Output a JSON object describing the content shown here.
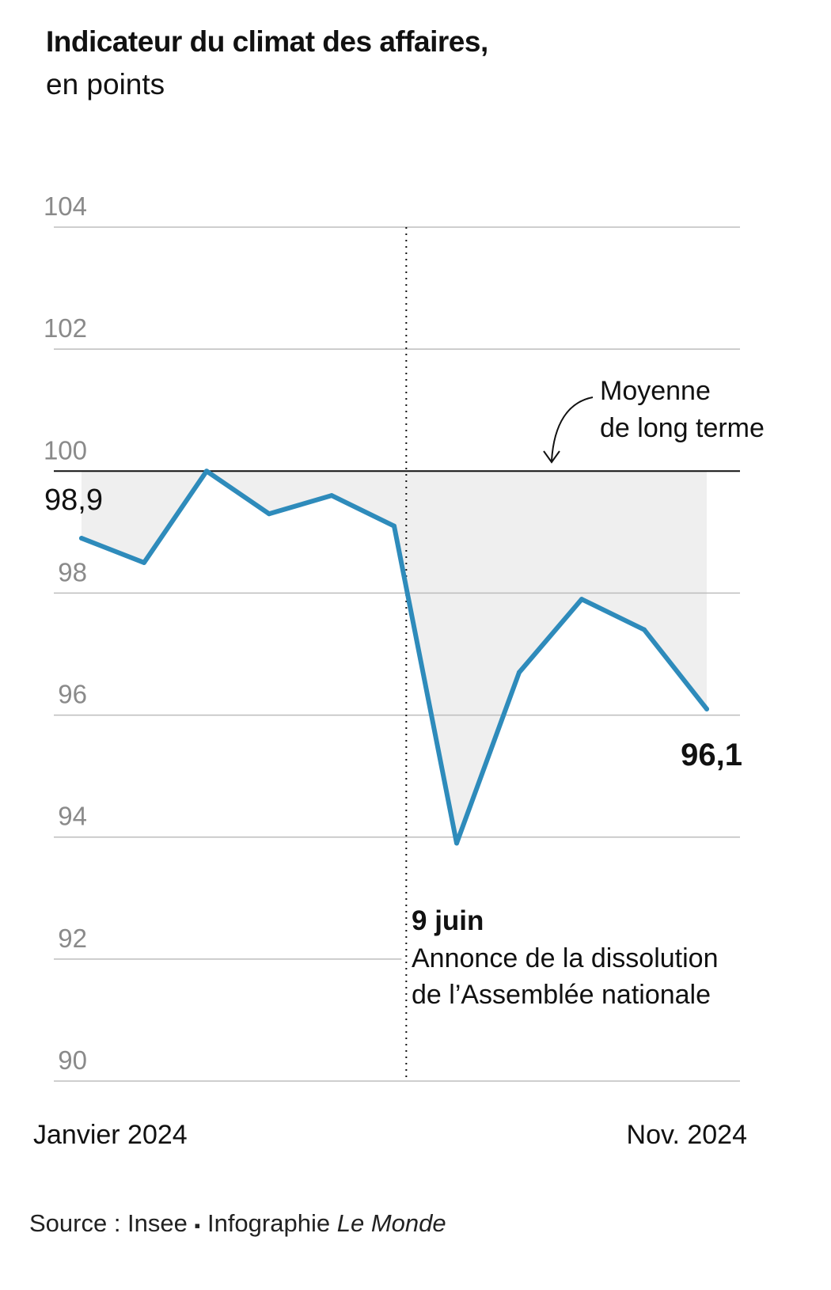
{
  "title": "Indicateur du climat des affaires,",
  "subtitle": "en points",
  "source": {
    "prefix": "Source : Insee",
    "separator": "▪",
    "credit": "Infographie",
    "brand": "Le Monde"
  },
  "colors": {
    "line": "#2e8bbb",
    "grid": "#bdbdbd",
    "reference": "#111111",
    "tick_text": "#8a8a8a",
    "shade": "#ececec"
  },
  "chart_data": {
    "type": "line",
    "title": "Indicateur du climat des affaires,",
    "subtitle": "en points",
    "xlabel": "",
    "ylabel": "",
    "ylim": [
      90,
      104
    ],
    "y_ticks": [
      90,
      92,
      94,
      96,
      98,
      100,
      102,
      104
    ],
    "y_tick_labels": [
      "90",
      "92",
      "94",
      "96",
      "98",
      "100",
      "102",
      "104"
    ],
    "x_labels": [
      "Janvier 2024",
      "Nov. 2024"
    ],
    "x": [
      "2024-01",
      "2024-02",
      "2024-03",
      "2024-04",
      "2024-05",
      "2024-06",
      "2024-07",
      "2024-08",
      "2024-09",
      "2024-10",
      "2024-11"
    ],
    "series": [
      {
        "values": [
          98.9,
          98.5,
          100.0,
          99.3,
          99.6,
          99.1,
          93.9,
          96.7,
          97.9,
          97.4,
          96.1
        ]
      }
    ],
    "reference_line": {
      "value": 100,
      "label_line1": "Moyenne",
      "label_line2": "de long terme"
    },
    "event": {
      "x": "2024-06-09",
      "date_label": "9 juin",
      "label_line1": "Annonce de la dissolution",
      "label_line2": "de l’Assemblée nationale"
    },
    "value_labels": {
      "first": "98,9",
      "last": "96,1"
    },
    "grid": true,
    "legend": "none"
  }
}
